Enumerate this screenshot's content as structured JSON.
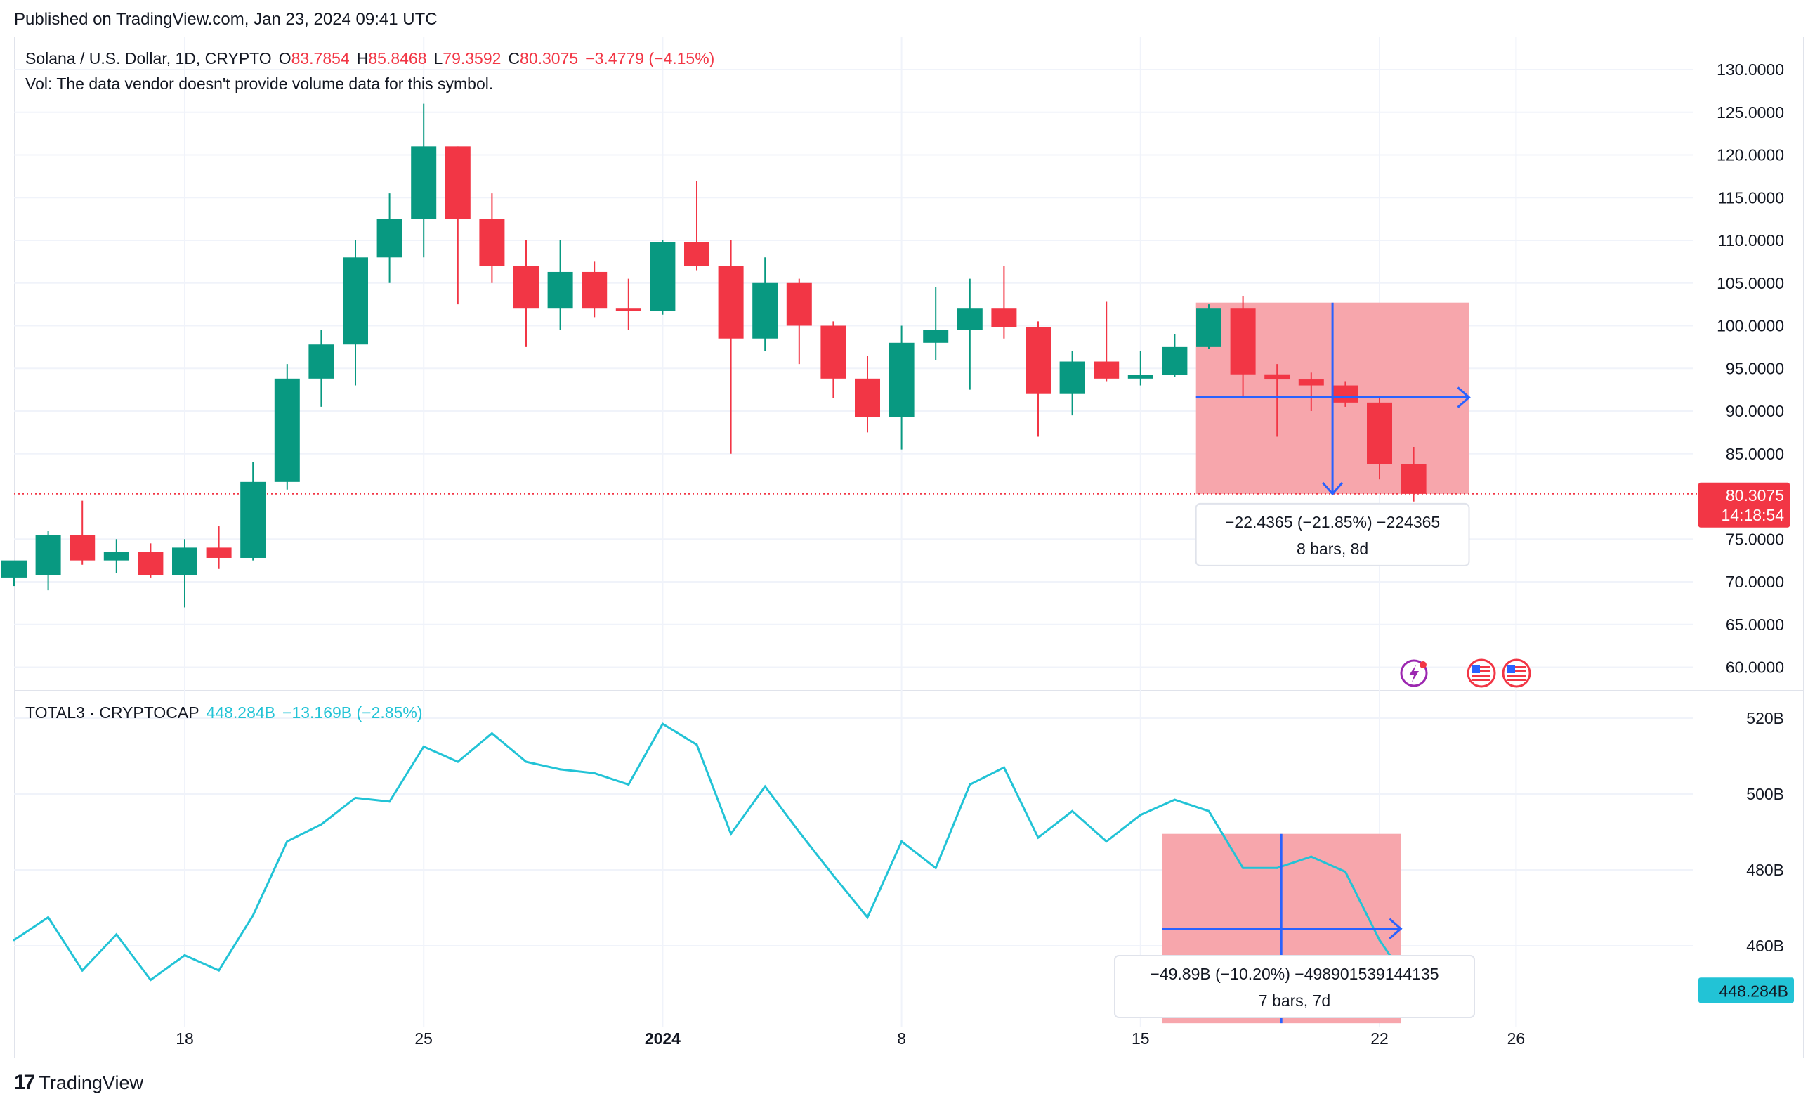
{
  "published": "Published on TradingView.com, Jan 23, 2024 09:41 UTC",
  "brand": "TradingView",
  "main_legend": {
    "symbol": "Solana / U.S. Dollar, 1D, CRYPTO",
    "o_label": "O",
    "o": "83.7854",
    "h_label": "H",
    "h": "85.8468",
    "l_label": "L",
    "l": "79.3592",
    "c_label": "C",
    "c": "80.3075",
    "change": "−3.4779 (−4.15%)"
  },
  "vol_note": "Vol: The data vendor doesn't provide volume data for this symbol.",
  "sub_legend": {
    "symbol": "TOTAL3 · CRYPTOCAP",
    "value": "448.284B",
    "change": "−13.169B (−2.85%)"
  },
  "price_tag": {
    "value": "80.3075",
    "countdown": "14:18:54"
  },
  "sub_price_tag": "448.284B",
  "main_measure": {
    "line1": "−22.4365 (−21.85%) −224365",
    "line2": "8 bars, 8d"
  },
  "sub_measure": {
    "line1": "−49.89B (−10.20%) −4989015391441 35",
    "line2": "7 bars, 7d"
  },
  "colors": {
    "up": "#089981",
    "down": "#f23645",
    "line": "#22c3d6",
    "measure_fill": "#f7a1a8",
    "measure_line": "#2962ff"
  },
  "chart_data": [
    {
      "type": "candlestick",
      "title": "Solana / U.S. Dollar, 1D, CRYPTO",
      "ylim": [
        57.5,
        132.5
      ],
      "y_ticks": [
        "130.0000",
        "125.0000",
        "120.0000",
        "115.0000",
        "110.0000",
        "105.0000",
        "100.0000",
        "95.0000",
        "90.0000",
        "85.0000",
        "75.0000",
        "70.0000",
        "65.0000",
        "60.0000"
      ],
      "x_ticks": [
        "18",
        "25",
        "2024",
        "8",
        "15",
        "22",
        "26"
      ],
      "candles": [
        {
          "date": "2023-12-13",
          "o": 70.5,
          "h": 72.0,
          "l": 69.5,
          "c": 72.5
        },
        {
          "date": "2023-12-14",
          "o": 70.8,
          "h": 76.0,
          "l": 69.0,
          "c": 75.5
        },
        {
          "date": "2023-12-15",
          "o": 75.5,
          "h": 79.5,
          "l": 72.0,
          "c": 72.5
        },
        {
          "date": "2023-12-16",
          "o": 72.5,
          "h": 75.0,
          "l": 71.0,
          "c": 73.5
        },
        {
          "date": "2023-12-17",
          "o": 73.5,
          "h": 74.5,
          "l": 70.5,
          "c": 70.8
        },
        {
          "date": "2023-12-18",
          "o": 70.8,
          "h": 75.0,
          "l": 67.0,
          "c": 74.0
        },
        {
          "date": "2023-12-19",
          "o": 74.0,
          "h": 76.5,
          "l": 71.5,
          "c": 72.8
        },
        {
          "date": "2023-12-20",
          "o": 72.8,
          "h": 84.0,
          "l": 72.5,
          "c": 81.7
        },
        {
          "date": "2023-12-21",
          "o": 81.7,
          "h": 95.5,
          "l": 80.8,
          "c": 93.8
        },
        {
          "date": "2023-12-22",
          "o": 93.8,
          "h": 99.5,
          "l": 90.5,
          "c": 97.8
        },
        {
          "date": "2023-12-23",
          "o": 97.8,
          "h": 110.0,
          "l": 93.0,
          "c": 108.0
        },
        {
          "date": "2023-12-24",
          "o": 108.0,
          "h": 115.5,
          "l": 105.0,
          "c": 112.5
        },
        {
          "date": "2023-12-25",
          "o": 112.5,
          "h": 126.0,
          "l": 108.0,
          "c": 121.0
        },
        {
          "date": "2023-12-26",
          "o": 121.0,
          "h": 121.0,
          "l": 102.5,
          "c": 112.5
        },
        {
          "date": "2023-12-27",
          "o": 112.5,
          "h": 115.5,
          "l": 105.0,
          "c": 107.0
        },
        {
          "date": "2023-12-28",
          "o": 107.0,
          "h": 110.0,
          "l": 97.5,
          "c": 102.0
        },
        {
          "date": "2023-12-29",
          "o": 102.0,
          "h": 110.0,
          "l": 99.5,
          "c": 106.3
        },
        {
          "date": "2023-12-30",
          "o": 106.3,
          "h": 107.5,
          "l": 101.0,
          "c": 102.0
        },
        {
          "date": "2023-12-31",
          "o": 102.0,
          "h": 105.5,
          "l": 99.5,
          "c": 101.7
        },
        {
          "date": "2024-01-01",
          "o": 101.7,
          "h": 110.0,
          "l": 101.3,
          "c": 109.8
        },
        {
          "date": "2024-01-02",
          "o": 109.8,
          "h": 117.0,
          "l": 106.5,
          "c": 107.0
        },
        {
          "date": "2024-01-03",
          "o": 107.0,
          "h": 110.0,
          "l": 85.0,
          "c": 98.5
        },
        {
          "date": "2024-01-04",
          "o": 98.5,
          "h": 108.0,
          "l": 97.0,
          "c": 105.0
        },
        {
          "date": "2024-01-05",
          "o": 105.0,
          "h": 105.5,
          "l": 95.5,
          "c": 100.0
        },
        {
          "date": "2024-01-06",
          "o": 100.0,
          "h": 100.5,
          "l": 91.5,
          "c": 93.8
        },
        {
          "date": "2024-01-07",
          "o": 93.8,
          "h": 96.5,
          "l": 87.5,
          "c": 89.3
        },
        {
          "date": "2024-01-08",
          "o": 89.3,
          "h": 100.0,
          "l": 85.5,
          "c": 98.0
        },
        {
          "date": "2024-01-09",
          "o": 98.0,
          "h": 104.5,
          "l": 96.0,
          "c": 99.5
        },
        {
          "date": "2024-01-10",
          "o": 99.5,
          "h": 105.5,
          "l": 92.5,
          "c": 102.0
        },
        {
          "date": "2024-01-11",
          "o": 102.0,
          "h": 107.0,
          "l": 98.5,
          "c": 99.8
        },
        {
          "date": "2024-01-12",
          "o": 99.8,
          "h": 100.5,
          "l": 87.0,
          "c": 92.0
        },
        {
          "date": "2024-01-13",
          "o": 92.0,
          "h": 97.0,
          "l": 89.5,
          "c": 95.8
        },
        {
          "date": "2024-01-14",
          "o": 95.8,
          "h": 102.8,
          "l": 93.5,
          "c": 93.8
        },
        {
          "date": "2024-01-15",
          "o": 93.8,
          "h": 97.0,
          "l": 93.0,
          "c": 94.2
        },
        {
          "date": "2024-01-16",
          "o": 94.2,
          "h": 99.0,
          "l": 94.0,
          "c": 97.5
        },
        {
          "date": "2024-01-17",
          "o": 97.5,
          "h": 102.5,
          "l": 97.3,
          "c": 102.0
        },
        {
          "date": "2024-01-18",
          "o": 102.0,
          "h": 103.5,
          "l": 91.5,
          "c": 94.3
        },
        {
          "date": "2024-01-19",
          "o": 94.3,
          "h": 95.5,
          "l": 87.0,
          "c": 93.7
        },
        {
          "date": "2024-01-20",
          "o": 93.7,
          "h": 94.5,
          "l": 90.0,
          "c": 93.0
        },
        {
          "date": "2024-01-21",
          "o": 93.0,
          "h": 93.5,
          "l": 90.5,
          "c": 91.0
        },
        {
          "date": "2024-01-22",
          "o": 91.0,
          "h": 91.8,
          "l": 82.0,
          "c": 83.8
        },
        {
          "date": "2024-01-23",
          "o": 83.8,
          "h": 85.8,
          "l": 79.4,
          "c": 80.3
        }
      ],
      "last_price": 80.3075,
      "measure": {
        "from_date": "2024-01-17",
        "to_date": "2024-01-25",
        "top": 102.7,
        "bottom": 80.3,
        "mid": 91.6
      }
    },
    {
      "type": "line",
      "title": "TOTAL3 · CRYPTOCAP",
      "ylim": [
        442,
        527
      ],
      "y_ticks": [
        "520B",
        "500B",
        "480B",
        "460B"
      ],
      "x": [
        "2023-12-13",
        "2023-12-14",
        "2023-12-15",
        "2023-12-16",
        "2023-12-17",
        "2023-12-18",
        "2023-12-19",
        "2023-12-20",
        "2023-12-21",
        "2023-12-22",
        "2023-12-23",
        "2023-12-24",
        "2023-12-25",
        "2023-12-26",
        "2023-12-27",
        "2023-12-28",
        "2023-12-29",
        "2023-12-30",
        "2023-12-31",
        "2024-01-01",
        "2024-01-02",
        "2024-01-03",
        "2024-01-04",
        "2024-01-05",
        "2024-01-06",
        "2024-01-07",
        "2024-01-08",
        "2024-01-09",
        "2024-01-10",
        "2024-01-11",
        "2024-01-12",
        "2024-01-13",
        "2024-01-14",
        "2024-01-15",
        "2024-01-16",
        "2024-01-17",
        "2024-01-18",
        "2024-01-19",
        "2024-01-20",
        "2024-01-21",
        "2024-01-22",
        "2024-01-23"
      ],
      "values": [
        461.5,
        467.5,
        453.5,
        463.0,
        451.0,
        457.5,
        453.5,
        468.0,
        487.5,
        492.0,
        499.0,
        498.0,
        512.5,
        508.5,
        516.0,
        508.5,
        506.5,
        505.5,
        502.5,
        518.5,
        513.0,
        489.5,
        502.0,
        490.0,
        478.5,
        467.5,
        487.5,
        480.5,
        502.5,
        507.0,
        488.5,
        495.5,
        487.5,
        494.5,
        498.5,
        495.5,
        480.5,
        480.5,
        483.5,
        479.5,
        461.5,
        448.3
      ],
      "last_value": 448.284,
      "measure": {
        "from_date": "2024-01-16",
        "to_date": "2024-01-23",
        "top": 489.5,
        "bottom": 439.6,
        "mid": 464.5
      }
    }
  ]
}
